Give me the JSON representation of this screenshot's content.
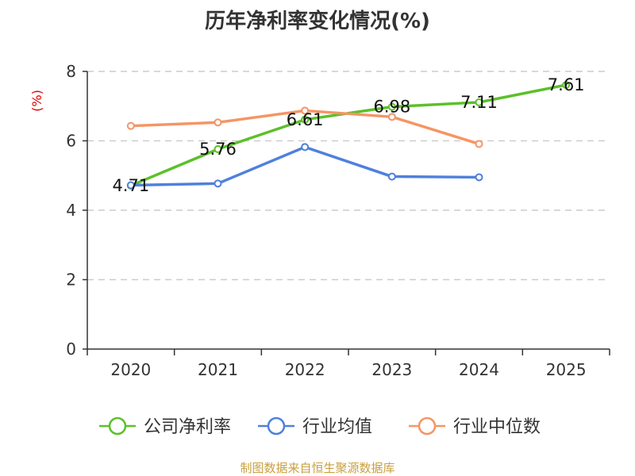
{
  "chart_data": {
    "type": "line",
    "title": "历年净利率变化情况(%)",
    "unit_label": "(%)",
    "categories": [
      "2020",
      "2021",
      "2022",
      "2023",
      "2024",
      "2025"
    ],
    "ylim": [
      0,
      8
    ],
    "yticks": [
      0,
      2,
      4,
      6,
      8
    ],
    "grid": true,
    "legend_position": "bottom",
    "series": [
      {
        "name": "公司净利率",
        "color": "#5cc02a",
        "values": [
          4.71,
          5.76,
          6.61,
          6.98,
          7.11,
          7.61
        ],
        "labels": [
          "4.71",
          "5.76",
          "6.61",
          "6.98",
          "7.11",
          "7.61"
        ]
      },
      {
        "name": "行业均值",
        "color": "#4f80dd",
        "values": [
          4.72,
          4.77,
          5.82,
          4.97,
          4.95,
          null
        ]
      },
      {
        "name": "行业中位数",
        "color": "#f59565",
        "values": [
          6.43,
          6.53,
          6.87,
          6.69,
          5.91,
          null
        ]
      }
    ]
  },
  "colors": {
    "unit_label": "#dd0000",
    "axis": "#333333",
    "grid": "#cccccc"
  },
  "source_note": "制图数据来自恒生聚源数据库"
}
